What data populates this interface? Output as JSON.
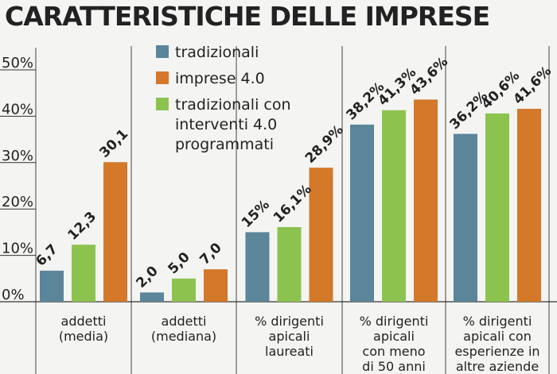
{
  "chart_data": {
    "type": "bar",
    "title": "CARATTERISTICHE DELLE IMPRESE",
    "categories": [
      "addetti\n(media)",
      "addetti\n(mediana)",
      "% dirigenti\napicali\nlaureati",
      "% dirigenti\napicali\ncon meno\ndi 50 anni",
      "% dirigenti\napicali con\nesperienze in\naltre aziende"
    ],
    "series": [
      {
        "name": "tradizionali",
        "color": "#5b8599",
        "values": [
          6.7,
          2.0,
          15,
          38.2,
          36.2
        ],
        "value_labels": [
          "6,7",
          "2,0",
          "15%",
          "38,2%",
          "36,2%"
        ]
      },
      {
        "name": "imprese 4.0",
        "color": "#d4782a",
        "values": [
          30.1,
          7.0,
          28.9,
          43.6,
          41.6
        ],
        "value_labels": [
          "30,1",
          "7,0",
          "28,9%",
          "43,6%",
          "41,6%"
        ]
      },
      {
        "name": "tradizionali con\ninterventi 4.0\nprogrammati",
        "color": "#8cc34f",
        "values": [
          12.3,
          5.0,
          16.1,
          41.3,
          40.6
        ],
        "value_labels": [
          "12,3",
          "5,0",
          "16,1%",
          "41,3%",
          "40,6%"
        ]
      }
    ],
    "ylim": [
      0,
      50
    ],
    "yticks": [
      {
        "value": 0,
        "label": "0%"
      },
      {
        "value": 10,
        "label": "10%"
      },
      {
        "value": 20,
        "label": "20%"
      },
      {
        "value": 30,
        "label": "30%"
      },
      {
        "value": 40,
        "label": "40%"
      },
      {
        "value": 50,
        "label": "50%"
      }
    ]
  }
}
